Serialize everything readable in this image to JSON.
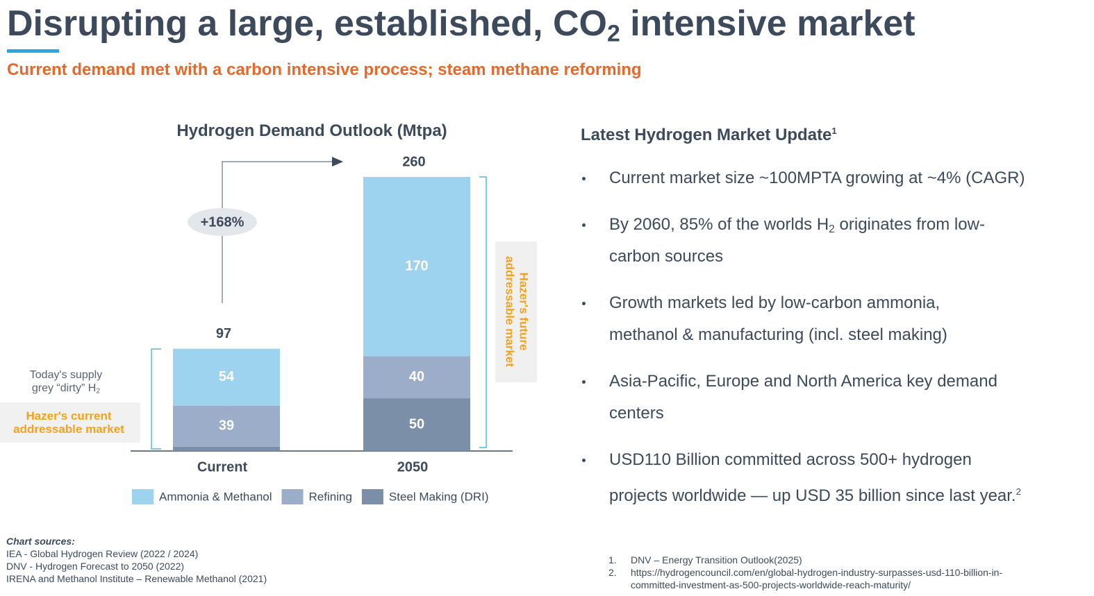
{
  "header": {
    "title": [
      {
        "t": "Disrupting a large, established, CO"
      },
      {
        "t": "2",
        "sub": true
      },
      {
        "t": " intensive market"
      }
    ],
    "subtitle": "Current demand met with a carbon intensive process; steam methane reforming"
  },
  "chart_data": {
    "type": "stacked_bar",
    "title": "Hydrogen Demand Outlook (Mtpa)",
    "categories": [
      "Current",
      "2050"
    ],
    "series": [
      {
        "name": "Ammonia & Methanol",
        "color": "#9dd3ee",
        "values": [
          54,
          170
        ]
      },
      {
        "name": "Refining",
        "color": "#9cadc9",
        "values": [
          39,
          40
        ]
      },
      {
        "name": "Steel Making (DRI)",
        "color": "#7b8fa8",
        "values": [
          4,
          50
        ]
      }
    ],
    "totals": [
      97,
      260
    ],
    "growth_label": "+168%",
    "supply_note": [
      [
        {
          "t": "Today's supply"
        }
      ],
      [
        {
          "t": "grey “dirty” H"
        },
        {
          "t": "2",
          "sub": true
        }
      ]
    ],
    "current_market_label": [
      "Hazer's current",
      "addressable market"
    ],
    "future_market_label": [
      "Hazer's future",
      "addressable market"
    ]
  },
  "market_update": {
    "heading": [
      {
        "t": "Latest Hydrogen Market Update"
      },
      {
        "t": "1",
        "sup": true
      }
    ],
    "bullets": [
      [
        [
          {
            "t": "Current market size ~100MPTA growing at ~4% (CAGR)"
          }
        ]
      ],
      [
        [
          {
            "t": "By 2060, 85% of the worlds H"
          },
          {
            "t": "2",
            "sub": true
          },
          {
            "t": " originates from low-"
          }
        ],
        [
          {
            "t": "carbon sources"
          }
        ]
      ],
      [
        [
          {
            "t": "Growth markets led by low-carbon ammonia,"
          }
        ],
        [
          {
            "t": "methanol & manufacturing (incl. steel making)"
          }
        ]
      ],
      [
        [
          {
            "t": "Asia-Pacific, Europe and North America key demand"
          }
        ],
        [
          {
            "t": "centers"
          }
        ]
      ],
      [
        [
          {
            "t": "USD110 Billion committed across 500+ hydrogen"
          }
        ],
        [
          {
            "t": "projects worldwide — up USD 35 billion since last year."
          },
          {
            "t": "2",
            "sup": true
          }
        ]
      ]
    ]
  },
  "chart_sources": {
    "heading": "Chart sources:",
    "items": [
      "IEA - Global Hydrogen Review (2022 / 2024)",
      "DNV - Hydrogen Forecast to 2050 (2022)",
      "IRENA and Methanol Institute – Renewable Methanol (2021)"
    ]
  },
  "footnotes": [
    {
      "number": "1.",
      "lines": [
        "DNV – Energy Transition Outlook(2025)"
      ]
    },
    {
      "number": "2.",
      "lines": [
        "https://hydrogencouncil.com/en/global-hydrogen-industry-surpasses-usd-110-billion-in-",
        "committed-investment-as-500-projects-worldwide-reach-maturity/"
      ]
    }
  ]
}
